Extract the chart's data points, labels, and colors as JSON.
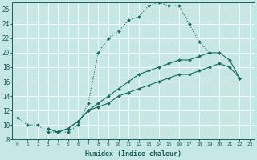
{
  "xlabel": "Humidex (Indice chaleur)",
  "bg_color": "#c5e8e5",
  "grid_color": "#ffffff",
  "line_color": "#1a6b5a",
  "xlim": [
    -0.5,
    23.5
  ],
  "ylim": [
    8,
    27
  ],
  "xticks": [
    0,
    1,
    2,
    3,
    4,
    5,
    6,
    7,
    8,
    9,
    10,
    11,
    12,
    13,
    14,
    15,
    16,
    17,
    18,
    19,
    20,
    21,
    22,
    23
  ],
  "yticks": [
    8,
    10,
    12,
    14,
    16,
    18,
    20,
    22,
    24,
    26
  ],
  "line1_x": [
    0,
    1,
    2,
    3,
    4,
    5,
    6,
    7,
    8,
    9,
    10,
    11,
    12,
    13,
    14,
    15,
    16,
    17,
    18,
    19
  ],
  "line1_y": [
    11,
    10,
    10,
    9,
    9,
    9,
    10,
    13,
    20,
    22,
    23,
    24.5,
    25,
    26.5,
    27,
    26.5,
    26.5,
    24,
    21.5,
    20
  ],
  "line2_x": [
    3,
    4,
    5,
    6,
    7,
    8,
    9,
    10,
    11,
    12,
    13,
    14,
    15,
    16,
    17,
    18,
    19,
    20,
    21,
    22
  ],
  "line2_y": [
    9.5,
    9,
    9.5,
    10.5,
    12,
    13,
    14,
    15,
    16,
    17,
    17.5,
    18,
    18.5,
    19,
    19,
    19.5,
    20,
    20,
    19,
    16.5
  ],
  "line3_x": [
    3,
    4,
    5,
    6,
    7,
    8,
    9,
    10,
    11,
    12,
    13,
    14,
    15,
    16,
    17,
    18,
    19,
    20,
    21,
    22
  ],
  "line3_y": [
    9.5,
    9,
    9.5,
    10.5,
    12,
    12.5,
    13,
    14,
    14.5,
    15,
    15.5,
    16,
    16.5,
    17,
    17,
    17.5,
    18,
    18.5,
    18,
    16.5
  ]
}
